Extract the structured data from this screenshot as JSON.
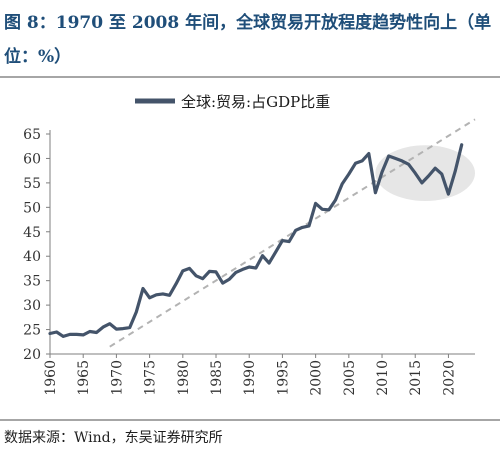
{
  "figure": {
    "title": "图 8：1970 至 2008 年间，全球贸易开放程度趋势性向上（单位：%）",
    "source": "数据来源：Wind，东吴证券研究所"
  },
  "chart_data": {
    "type": "line",
    "xlabel": "",
    "ylabel": "",
    "xlim": [
      1960,
      2024
    ],
    "ylim": [
      20,
      65
    ],
    "x_ticks": [
      1960,
      1965,
      1970,
      1975,
      1980,
      1985,
      1990,
      1995,
      2000,
      2005,
      2010,
      2015,
      2020
    ],
    "y_ticks": [
      20,
      25,
      30,
      35,
      40,
      45,
      50,
      55,
      60,
      65
    ],
    "legend_position": "top-center",
    "grid": false,
    "series": [
      {
        "name": "全球:贸易:占GDP比重",
        "color": "#44546a",
        "x": [
          1960,
          1961,
          1962,
          1963,
          1964,
          1965,
          1966,
          1967,
          1968,
          1969,
          1970,
          1971,
          1972,
          1973,
          1974,
          1975,
          1976,
          1977,
          1978,
          1979,
          1980,
          1981,
          1982,
          1983,
          1984,
          1985,
          1986,
          1987,
          1988,
          1989,
          1990,
          1991,
          1992,
          1993,
          1994,
          1995,
          1996,
          1997,
          1998,
          1999,
          2000,
          2001,
          2002,
          2003,
          2004,
          2005,
          2006,
          2007,
          2008,
          2009,
          2010,
          2011,
          2012,
          2013,
          2014,
          2015,
          2016,
          2017,
          2018,
          2019,
          2020,
          2021,
          2022
        ],
        "y": [
          24.2,
          24.5,
          23.6,
          24.0,
          24.0,
          23.9,
          24.6,
          24.4,
          25.5,
          26.2,
          25.1,
          25.2,
          25.4,
          28.6,
          33.4,
          31.5,
          32.1,
          32.3,
          32.0,
          34.4,
          37.0,
          37.5,
          36.0,
          35.4,
          36.9,
          36.8,
          34.5,
          35.3,
          36.7,
          37.3,
          37.8,
          37.6,
          40.1,
          38.6,
          40.9,
          43.2,
          43.0,
          45.3,
          45.9,
          46.2,
          50.8,
          49.6,
          49.5,
          51.5,
          54.8,
          56.8,
          59.0,
          59.5,
          61.0,
          53.0,
          57.2,
          60.5,
          60.0,
          59.5,
          58.8,
          57.0,
          55.0,
          56.4,
          58.0,
          56.8,
          52.7,
          57.3,
          62.8
        ]
      }
    ],
    "trend_line": {
      "x": [
        1969,
        2024
      ],
      "y": [
        21.5,
        68.0
      ],
      "style": "dashed",
      "color": "#b3b3b3"
    },
    "highlight_ellipse": {
      "center_x": 2016.5,
      "center_y": 57.0,
      "radius_x_years": 7.5,
      "radius_y_units": 5.7,
      "color": "#e6e6e6"
    }
  }
}
